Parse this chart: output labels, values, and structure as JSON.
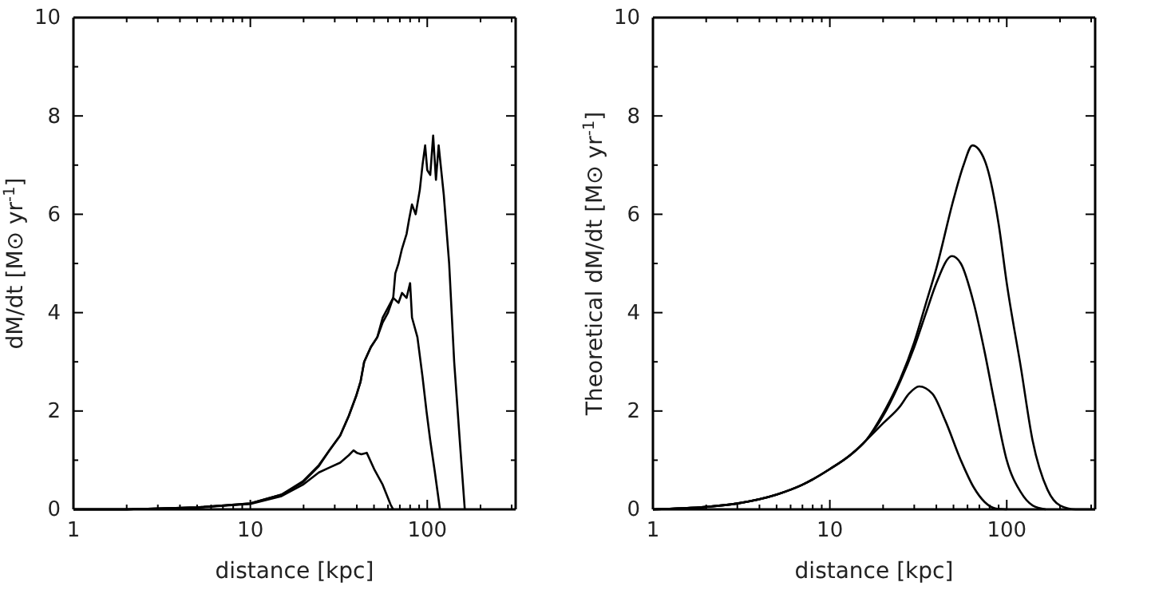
{
  "chart_data": [
    {
      "type": "line",
      "xlabel": "distance [kpc]",
      "ylabel": "dM/dt [M⊙ yr$^{-1}$]",
      "log": "x",
      "marker": "none",
      "line_style": "solid",
      "grid": false,
      "xlim": [
        1,
        316
      ],
      "xticks": [
        1,
        {
          "value": 2,
          "label": null
        },
        {
          "value": 3,
          "label": null
        },
        {
          "value": 4,
          "label": null
        },
        {
          "value": 5,
          "label": null
        },
        {
          "value": 6,
          "label": null
        },
        {
          "value": 7,
          "label": null
        },
        {
          "value": 8,
          "label": null
        },
        {
          "value": 9,
          "label": null
        },
        10,
        {
          "value": 20,
          "label": null
        },
        {
          "value": 30,
          "label": null
        },
        {
          "value": 40,
          "label": null
        },
        {
          "value": 50,
          "label": null
        },
        {
          "value": 60,
          "label": null
        },
        {
          "value": 70,
          "label": null
        },
        {
          "value": 80,
          "label": null
        },
        {
          "value": 90,
          "label": null
        },
        100,
        {
          "value": 200,
          "label": null
        },
        {
          "value": 300,
          "label": null
        }
      ],
      "ylim": [
        0,
        10
      ],
      "yticks": [
        0,
        {
          "value": 1,
          "label": null
        },
        2,
        {
          "value": 3,
          "label": null
        },
        4,
        {
          "value": 5,
          "label": null
        },
        6,
        {
          "value": 7,
          "label": null
        },
        8,
        {
          "value": 9,
          "label": null
        },
        10
      ],
      "series": [
        {
          "color": "#000000",
          "x": [
            1,
            2,
            5,
            10,
            15,
            19.8,
            24.4,
            28,
            32.2,
            36,
            39.6,
            42,
            44,
            48,
            52.2,
            56,
            60,
            64.2,
            66,
            68.8,
            72,
            76.4,
            79,
            82,
            86,
            90.8,
            94,
            97.3,
            100,
            104,
            108,
            112,
            116,
            124,
            133,
            142,
            152,
            163
          ],
          "values": [
            0,
            0,
            0.04,
            0.12,
            0.3,
            0.57,
            0.9,
            1.2,
            1.5,
            1.9,
            2.3,
            2.6,
            3.0,
            3.3,
            3.5,
            3.9,
            4.1,
            4.3,
            4.8,
            5.0,
            5.3,
            5.6,
            5.9,
            6.2,
            6.0,
            6.5,
            7.0,
            7.4,
            6.9,
            6.8,
            7.6,
            6.7,
            7.4,
            6.4,
            5.0,
            3.0,
            1.5,
            0
          ]
        },
        {
          "color": "#000000",
          "x": [
            1,
            2,
            5,
            10,
            15,
            19.8,
            24.4,
            28,
            32.2,
            36,
            39.6,
            42,
            44,
            48,
            52.2,
            56,
            60,
            64.2,
            68.8,
            72,
            76.4,
            80,
            82,
            88,
            94,
            99,
            104,
            110,
            118
          ],
          "values": [
            0,
            0,
            0.04,
            0.12,
            0.3,
            0.55,
            0.88,
            1.2,
            1.5,
            1.9,
            2.3,
            2.6,
            3.0,
            3.3,
            3.5,
            3.8,
            4.0,
            4.3,
            4.2,
            4.4,
            4.3,
            4.6,
            3.9,
            3.5,
            2.7,
            2.0,
            1.4,
            0.8,
            0
          ]
        },
        {
          "color": "#000000",
          "x": [
            1,
            2,
            5,
            10,
            15,
            19.8,
            24.4,
            28,
            32.2,
            36,
            38.3,
            40,
            42.4,
            45.5,
            50.4,
            56,
            62,
            64.2
          ],
          "values": [
            0,
            0,
            0.04,
            0.11,
            0.27,
            0.5,
            0.75,
            0.85,
            0.95,
            1.1,
            1.2,
            1.15,
            1.12,
            1.15,
            0.8,
            0.5,
            0.1,
            0
          ]
        }
      ]
    },
    {
      "type": "line",
      "xlabel": "distance [kpc]",
      "ylabel": "Theoretical dM/dt [M⊙ yr$^{-1}$]",
      "log": "x",
      "marker": "none",
      "line_style": "solid",
      "grid": false,
      "xlim": [
        1,
        316
      ],
      "xticks": [
        1,
        {
          "value": 2,
          "label": null
        },
        {
          "value": 3,
          "label": null
        },
        {
          "value": 4,
          "label": null
        },
        {
          "value": 5,
          "label": null
        },
        {
          "value": 6,
          "label": null
        },
        {
          "value": 7,
          "label": null
        },
        {
          "value": 8,
          "label": null
        },
        {
          "value": 9,
          "label": null
        },
        10,
        {
          "value": 20,
          "label": null
        },
        {
          "value": 30,
          "label": null
        },
        {
          "value": 40,
          "label": null
        },
        {
          "value": 50,
          "label": null
        },
        {
          "value": 60,
          "label": null
        },
        {
          "value": 70,
          "label": null
        },
        {
          "value": 80,
          "label": null
        },
        {
          "value": 90,
          "label": null
        },
        100,
        {
          "value": 200,
          "label": null
        },
        {
          "value": 300,
          "label": null
        }
      ],
      "ylim": [
        0,
        10
      ],
      "yticks": [
        0,
        {
          "value": 1,
          "label": null
        },
        2,
        {
          "value": 3,
          "label": null
        },
        4,
        {
          "value": 5,
          "label": null
        },
        6,
        {
          "value": 7,
          "label": null
        },
        8,
        {
          "value": 9,
          "label": null
        },
        10
      ],
      "series": [
        {
          "color": "#000000",
          "x": [
            1,
            2,
            3,
            5,
            7,
            10,
            13,
            16,
            20,
            25,
            30,
            35,
            40,
            50,
            57,
            64,
            75,
            90,
            100,
            120,
            140,
            170,
            200,
            245,
            316
          ],
          "values": [
            0,
            0.05,
            0.12,
            0.3,
            0.5,
            0.82,
            1.1,
            1.4,
            1.95,
            2.65,
            3.4,
            4.2,
            4.9,
            6.3,
            7.0,
            7.4,
            7.1,
            5.8,
            4.6,
            2.9,
            1.4,
            0.4,
            0.08,
            0,
            0
          ]
        },
        {
          "color": "#000000",
          "x": [
            1,
            2,
            3,
            5,
            7,
            10,
            13,
            16,
            20,
            25,
            30,
            35,
            40,
            49,
            55,
            65,
            75,
            85,
            100,
            120,
            140,
            166
          ],
          "values": [
            0,
            0.05,
            0.12,
            0.3,
            0.5,
            0.82,
            1.1,
            1.4,
            1.9,
            2.6,
            3.3,
            4.0,
            4.6,
            5.15,
            5.0,
            4.2,
            3.2,
            2.2,
            1.0,
            0.35,
            0.08,
            0
          ]
        },
        {
          "color": "#000000",
          "x": [
            1,
            2,
            3,
            5,
            7,
            10,
            13,
            16,
            20,
            25,
            28,
            32,
            38,
            45,
            55,
            65,
            75,
            86,
            100
          ],
          "values": [
            0,
            0.05,
            0.12,
            0.3,
            0.5,
            0.82,
            1.1,
            1.4,
            1.75,
            2.1,
            2.35,
            2.5,
            2.35,
            1.8,
            1.0,
            0.45,
            0.15,
            0.02,
            0
          ]
        }
      ]
    }
  ]
}
